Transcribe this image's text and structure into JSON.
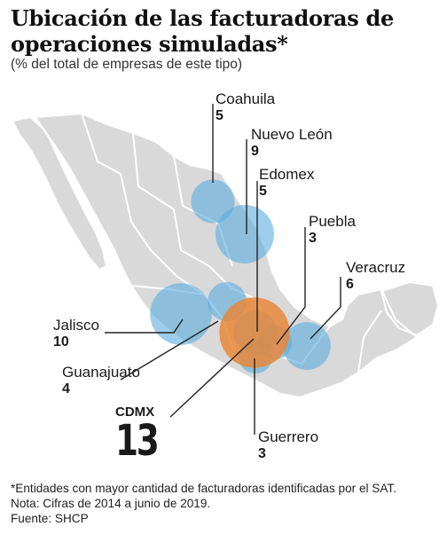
{
  "title": "Ubicación de las facturadoras de operaciones simuladas*",
  "subtitle": "(% del total de empresas de este tipo)",
  "colors": {
    "bubble_blue": "#5aaee0",
    "bubble_orange": "#e8873a",
    "land": "#d9d9d9",
    "border": "#ffffff",
    "leader_line": "#222222"
  },
  "states": [
    {
      "id": "coahuila",
      "name": "Coahuila",
      "value": "5"
    },
    {
      "id": "nuevo-leon",
      "name": "Nuevo León",
      "value": "9"
    },
    {
      "id": "edomex",
      "name": "Edomex",
      "value": "5"
    },
    {
      "id": "puebla",
      "name": "Puebla",
      "value": "3"
    },
    {
      "id": "veracruz",
      "name": "Veracruz",
      "value": "6"
    },
    {
      "id": "jalisco",
      "name": "Jalisco",
      "value": "10"
    },
    {
      "id": "guanajuato",
      "name": "Guanajuato",
      "value": "4"
    },
    {
      "id": "cdmx",
      "name": "CDMX",
      "value": "13"
    },
    {
      "id": "guerrero",
      "name": "Guerrero",
      "value": "3"
    }
  ],
  "notes": {
    "asterisk": "*Entidades con mayor cantidad de facturadoras identificadas por el SAT.",
    "nota": "Nota: Cifras de 2014 a junio de 2019.",
    "fuente": "Fuente: SHCP"
  }
}
